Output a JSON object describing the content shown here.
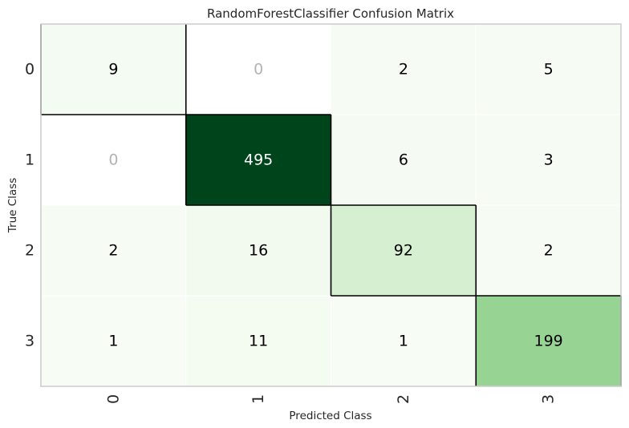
{
  "chart_data": {
    "type": "heatmap",
    "title": "RandomForestClassifier Confusion Matrix",
    "xlabel": "Predicted Class",
    "ylabel": "True Class",
    "x_categories": [
      "0",
      "1",
      "2",
      "3"
    ],
    "y_categories": [
      "0",
      "1",
      "2",
      "3"
    ],
    "values": [
      [
        9,
        0,
        2,
        5
      ],
      [
        0,
        495,
        6,
        3
      ],
      [
        2,
        16,
        92,
        2
      ],
      [
        1,
        11,
        1,
        199
      ]
    ],
    "colormap": "Greens",
    "zero_cell_color": "#ffffff",
    "zero_text_color": "#b3b3b3",
    "text_color_dark": "#000000",
    "text_color_light": "#ffffff",
    "diagonal_outline_color": "#000000",
    "frame_color": "#cccccc",
    "grid_color": "#ffffff"
  }
}
